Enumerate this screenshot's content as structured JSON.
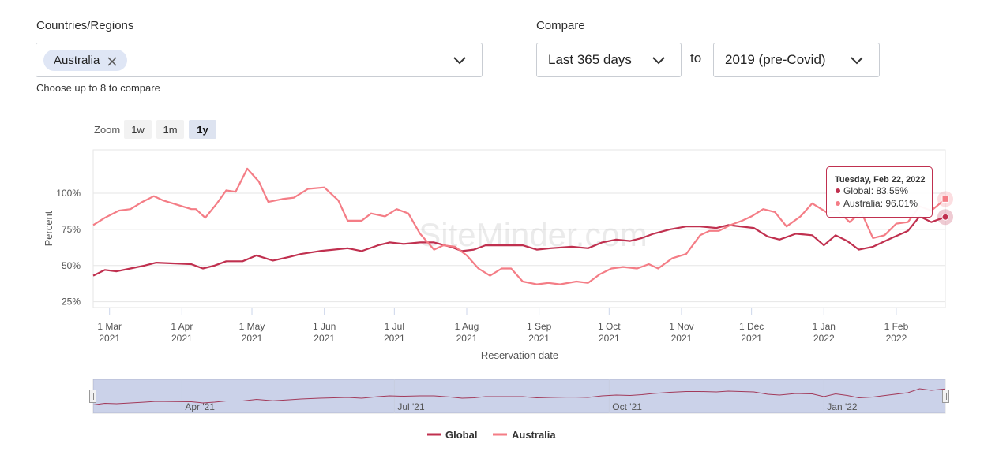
{
  "filters": {
    "countries_label": "Countries/Regions",
    "selected_country": "Australia",
    "hint": "Choose up to 8 to compare",
    "compare_label": "Compare",
    "compare_from": "Last 365 days",
    "compare_to_word": "to",
    "compare_to": "2019 (pre-Covid)"
  },
  "zoom": {
    "label": "Zoom",
    "options": [
      "1w",
      "1m",
      "1y"
    ],
    "active": "1y"
  },
  "watermark": "SiteMinder.com",
  "tooltip": {
    "date": "Tuesday, Feb 22, 2022",
    "global_text": "Global: 83.55%",
    "australia_text": "Australia: 96.01%"
  },
  "chart_data": {
    "type": "line",
    "xlabel": "Reservation date",
    "ylabel": "Percent",
    "x_ticks": [
      {
        "date": "2021-03-01",
        "l1": "1 Mar",
        "l2": "2021"
      },
      {
        "date": "2021-04-01",
        "l1": "1 Apr",
        "l2": "2021"
      },
      {
        "date": "2021-05-01",
        "l1": "1 May",
        "l2": "2021"
      },
      {
        "date": "2021-06-01",
        "l1": "1 Jun",
        "l2": "2021"
      },
      {
        "date": "2021-07-01",
        "l1": "1 Jul",
        "l2": "2021"
      },
      {
        "date": "2021-08-01",
        "l1": "1 Aug",
        "l2": "2021"
      },
      {
        "date": "2021-09-01",
        "l1": "1 Sep",
        "l2": "2021"
      },
      {
        "date": "2021-10-01",
        "l1": "1 Oct",
        "l2": "2021"
      },
      {
        "date": "2021-11-01",
        "l1": "1 Nov",
        "l2": "2021"
      },
      {
        "date": "2021-12-01",
        "l1": "1 Dec",
        "l2": "2021"
      },
      {
        "date": "2022-01-01",
        "l1": "1 Jan",
        "l2": "2022"
      },
      {
        "date": "2022-02-01",
        "l1": "1 Feb",
        "l2": "2022"
      }
    ],
    "y_ticks": [
      {
        "v": 25,
        "label": "25%"
      },
      {
        "v": 50,
        "label": "50%"
      },
      {
        "v": 75,
        "label": "75%"
      },
      {
        "v": 100,
        "label": "100%"
      }
    ],
    "xlim": [
      "2021-02-22",
      "2022-02-22"
    ],
    "ylim": [
      21,
      130
    ],
    "grid": true,
    "legend": "bottom-center",
    "series": [
      {
        "name": "Global",
        "color": "#c0304f",
        "points": [
          [
            "2021-02-22",
            43
          ],
          [
            "2021-02-27",
            47
          ],
          [
            "2021-03-04",
            46
          ],
          [
            "2021-03-10",
            48
          ],
          [
            "2021-03-16",
            50
          ],
          [
            "2021-03-21",
            52
          ],
          [
            "2021-03-28",
            51.5
          ],
          [
            "2021-04-05",
            51
          ],
          [
            "2021-04-10",
            48
          ],
          [
            "2021-04-15",
            50
          ],
          [
            "2021-04-20",
            53
          ],
          [
            "2021-04-27",
            53
          ],
          [
            "2021-05-03",
            57
          ],
          [
            "2021-05-10",
            53.5
          ],
          [
            "2021-05-17",
            56
          ],
          [
            "2021-05-22",
            58
          ],
          [
            "2021-05-30",
            60
          ],
          [
            "2021-06-05",
            61
          ],
          [
            "2021-06-11",
            62
          ],
          [
            "2021-06-17",
            60
          ],
          [
            "2021-06-24",
            64
          ],
          [
            "2021-06-29",
            66
          ],
          [
            "2021-07-05",
            65
          ],
          [
            "2021-07-12",
            66
          ],
          [
            "2021-07-18",
            66
          ],
          [
            "2021-07-25",
            63
          ],
          [
            "2021-07-30",
            60
          ],
          [
            "2021-08-04",
            61
          ],
          [
            "2021-08-09",
            64
          ],
          [
            "2021-08-18",
            64
          ],
          [
            "2021-08-25",
            64
          ],
          [
            "2021-08-31",
            61
          ],
          [
            "2021-09-06",
            62
          ],
          [
            "2021-09-15",
            63
          ],
          [
            "2021-09-22",
            62
          ],
          [
            "2021-09-28",
            66
          ],
          [
            "2021-10-04",
            68
          ],
          [
            "2021-10-10",
            67
          ],
          [
            "2021-10-15",
            69
          ],
          [
            "2021-10-20",
            72
          ],
          [
            "2021-10-27",
            75
          ],
          [
            "2021-11-03",
            77
          ],
          [
            "2021-11-09",
            77
          ],
          [
            "2021-11-16",
            76
          ],
          [
            "2021-11-21",
            78
          ],
          [
            "2021-12-02",
            76
          ],
          [
            "2021-12-08",
            70
          ],
          [
            "2021-12-13",
            68
          ],
          [
            "2021-12-20",
            72
          ],
          [
            "2021-12-27",
            71
          ],
          [
            "2022-01-01",
            64
          ],
          [
            "2022-01-06",
            71
          ],
          [
            "2022-01-11",
            67
          ],
          [
            "2022-01-16",
            61
          ],
          [
            "2022-01-22",
            63
          ],
          [
            "2022-01-30",
            69
          ],
          [
            "2022-02-06",
            74
          ],
          [
            "2022-02-11",
            84
          ],
          [
            "2022-02-16",
            80
          ],
          [
            "2022-02-22",
            83.55
          ]
        ]
      },
      {
        "name": "Australia",
        "color": "#f47d86",
        "points": [
          [
            "2021-02-22",
            78
          ],
          [
            "2021-02-27",
            83
          ],
          [
            "2021-03-05",
            88
          ],
          [
            "2021-03-10",
            89
          ],
          [
            "2021-03-15",
            94
          ],
          [
            "2021-03-20",
            98
          ],
          [
            "2021-03-24",
            95
          ],
          [
            "2021-03-30",
            92
          ],
          [
            "2021-04-05",
            89
          ],
          [
            "2021-04-07",
            89
          ],
          [
            "2021-04-11",
            83
          ],
          [
            "2021-04-16",
            93
          ],
          [
            "2021-04-20",
            102
          ],
          [
            "2021-04-24",
            101
          ],
          [
            "2021-04-29",
            117
          ],
          [
            "2021-05-04",
            108
          ],
          [
            "2021-05-08",
            94
          ],
          [
            "2021-05-14",
            96
          ],
          [
            "2021-05-19",
            97
          ],
          [
            "2021-05-25",
            103
          ],
          [
            "2021-06-01",
            104
          ],
          [
            "2021-06-07",
            95
          ],
          [
            "2021-06-11",
            81
          ],
          [
            "2021-06-17",
            81
          ],
          [
            "2021-06-21",
            86
          ],
          [
            "2021-06-27",
            84
          ],
          [
            "2021-07-02",
            89
          ],
          [
            "2021-07-07",
            86
          ],
          [
            "2021-07-12",
            72
          ],
          [
            "2021-07-18",
            61
          ],
          [
            "2021-07-22",
            64
          ],
          [
            "2021-07-27",
            63
          ],
          [
            "2021-08-01",
            57
          ],
          [
            "2021-08-06",
            48
          ],
          [
            "2021-08-11",
            43
          ],
          [
            "2021-08-16",
            48
          ],
          [
            "2021-08-20",
            48
          ],
          [
            "2021-08-25",
            39
          ],
          [
            "2021-08-31",
            37
          ],
          [
            "2021-09-05",
            38
          ],
          [
            "2021-09-10",
            37
          ],
          [
            "2021-09-17",
            39
          ],
          [
            "2021-09-22",
            38
          ],
          [
            "2021-09-27",
            44
          ],
          [
            "2021-10-02",
            48
          ],
          [
            "2021-10-07",
            49
          ],
          [
            "2021-10-13",
            48
          ],
          [
            "2021-10-18",
            51
          ],
          [
            "2021-10-22",
            48
          ],
          [
            "2021-10-28",
            55
          ],
          [
            "2021-11-03",
            58
          ],
          [
            "2021-11-09",
            71
          ],
          [
            "2021-11-13",
            74
          ],
          [
            "2021-11-17",
            74
          ],
          [
            "2021-11-22",
            78
          ],
          [
            "2021-11-27",
            81
          ],
          [
            "2021-12-01",
            84
          ],
          [
            "2021-12-06",
            89
          ],
          [
            "2021-12-11",
            87
          ],
          [
            "2021-12-16",
            77
          ],
          [
            "2021-12-22",
            84
          ],
          [
            "2021-12-27",
            93
          ],
          [
            "2022-01-02",
            87
          ],
          [
            "2022-01-07",
            88
          ],
          [
            "2022-01-12",
            80
          ],
          [
            "2022-01-17",
            87
          ],
          [
            "2022-01-22",
            69
          ],
          [
            "2022-01-27",
            71
          ],
          [
            "2022-02-01",
            79
          ],
          [
            "2022-02-06",
            80
          ],
          [
            "2022-02-11",
            91
          ],
          [
            "2022-02-16",
            88
          ],
          [
            "2022-02-22",
            96.01
          ]
        ]
      }
    ]
  },
  "navigator": {
    "labels": [
      {
        "date": "2021-04-01",
        "text": "Apr '21"
      },
      {
        "date": "2021-07-01",
        "text": "Jul '21"
      },
      {
        "date": "2021-10-01",
        "text": "Oct '21"
      },
      {
        "date": "2022-01-01",
        "text": "Jan '22"
      }
    ]
  },
  "legend_items": [
    "Global",
    "Australia"
  ]
}
